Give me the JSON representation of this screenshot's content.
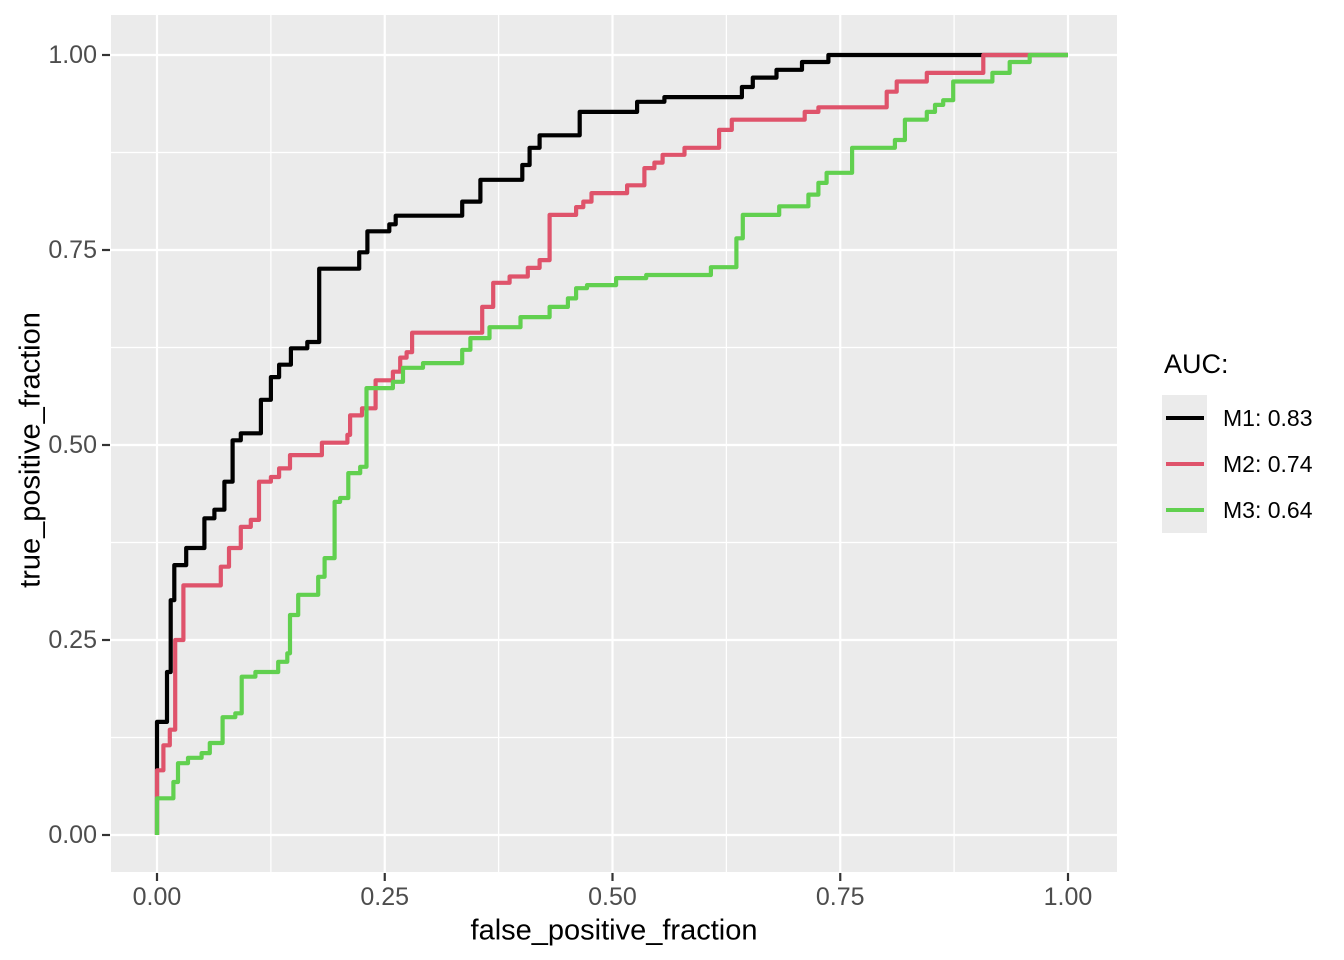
{
  "chart_data": {
    "type": "line",
    "subtype": "roc-step-curves",
    "title": "",
    "xlabel": "false_positive_fraction",
    "ylabel": "true_positive_fraction",
    "xlim": [
      0,
      1
    ],
    "ylim": [
      0,
      1
    ],
    "x_ticks": [
      0,
      0.25,
      0.5,
      0.75,
      1
    ],
    "x_tick_labels": [
      "0.00",
      "0.25",
      "0.50",
      "0.75",
      "1.00"
    ],
    "x_minor_ticks": [
      0.125,
      0.375,
      0.625,
      0.875
    ],
    "y_ticks": [
      0,
      0.25,
      0.5,
      0.75,
      1
    ],
    "y_tick_labels": [
      "0.00",
      "0.25",
      "0.50",
      "0.75",
      "1.00"
    ],
    "y_minor_ticks": [
      0.125,
      0.375,
      0.625,
      0.875
    ],
    "grid": "major and minor white gridlines on gray panel",
    "style": {
      "panel_bg": "#EBEBEB",
      "grid_color": "#FFFFFF",
      "tick_color": "#333333",
      "axis_text_color": "#4D4D4D",
      "legend_key_bg": "#EBEBEB"
    },
    "legend": {
      "title": "AUC:",
      "position": "right",
      "entries": [
        {
          "label": "M1: 0.83",
          "color": "#000000"
        },
        {
          "label": "M2: 0.74",
          "color": "#DF536B"
        },
        {
          "label": "M3: 0.64",
          "color": "#61D04F"
        }
      ]
    },
    "series": [
      {
        "name": "M1",
        "auc": 0.83,
        "color": "#000000",
        "step_points": [
          [
            0,
            0
          ],
          [
            0,
            0.145
          ],
          [
            0.011,
            0.209
          ],
          [
            0.015,
            0.301
          ],
          [
            0.019,
            0.346
          ],
          [
            0.032,
            0.368
          ],
          [
            0.052,
            0.406
          ],
          [
            0.063,
            0.417
          ],
          [
            0.074,
            0.453
          ],
          [
            0.083,
            0.506
          ],
          [
            0.092,
            0.515
          ],
          [
            0.114,
            0.558
          ],
          [
            0.125,
            0.587
          ],
          [
            0.134,
            0.603
          ],
          [
            0.147,
            0.624
          ],
          [
            0.165,
            0.632
          ],
          [
            0.178,
            0.726
          ],
          [
            0.222,
            0.747
          ],
          [
            0.231,
            0.774
          ],
          [
            0.255,
            0.783
          ],
          [
            0.262,
            0.794
          ],
          [
            0.335,
            0.812
          ],
          [
            0.355,
            0.84
          ],
          [
            0.401,
            0.859
          ],
          [
            0.409,
            0.881
          ],
          [
            0.42,
            0.897
          ],
          [
            0.464,
            0.927
          ],
          [
            0.527,
            0.94
          ],
          [
            0.557,
            0.946
          ],
          [
            0.642,
            0.959
          ],
          [
            0.654,
            0.971
          ],
          [
            0.68,
            0.981
          ],
          [
            0.708,
            0.991
          ],
          [
            0.737,
            1
          ],
          [
            1,
            1
          ]
        ]
      },
      {
        "name": "M2",
        "auc": 0.74,
        "color": "#DF536B",
        "step_points": [
          [
            0,
            0
          ],
          [
            0,
            0.083
          ],
          [
            0.007,
            0.115
          ],
          [
            0.014,
            0.135
          ],
          [
            0.02,
            0.25
          ],
          [
            0.029,
            0.32
          ],
          [
            0.07,
            0.344
          ],
          [
            0.079,
            0.368
          ],
          [
            0.092,
            0.395
          ],
          [
            0.103,
            0.404
          ],
          [
            0.112,
            0.453
          ],
          [
            0.125,
            0.459
          ],
          [
            0.134,
            0.47
          ],
          [
            0.146,
            0.487
          ],
          [
            0.181,
            0.503
          ],
          [
            0.209,
            0.513
          ],
          [
            0.212,
            0.538
          ],
          [
            0.225,
            0.547
          ],
          [
            0.24,
            0.583
          ],
          [
            0.259,
            0.594
          ],
          [
            0.267,
            0.612
          ],
          [
            0.274,
            0.619
          ],
          [
            0.28,
            0.644
          ],
          [
            0.357,
            0.677
          ],
          [
            0.369,
            0.708
          ],
          [
            0.387,
            0.716
          ],
          [
            0.407,
            0.727
          ],
          [
            0.42,
            0.737
          ],
          [
            0.431,
            0.795
          ],
          [
            0.46,
            0.805
          ],
          [
            0.468,
            0.812
          ],
          [
            0.477,
            0.823
          ],
          [
            0.516,
            0.833
          ],
          [
            0.535,
            0.855
          ],
          [
            0.546,
            0.862
          ],
          [
            0.555,
            0.872
          ],
          [
            0.579,
            0.881
          ],
          [
            0.617,
            0.904
          ],
          [
            0.631,
            0.917
          ],
          [
            0.711,
            0.927
          ],
          [
            0.726,
            0.933
          ],
          [
            0.801,
            0.953
          ],
          [
            0.812,
            0.966
          ],
          [
            0.845,
            0.977
          ],
          [
            0.907,
            1
          ],
          [
            1,
            1
          ]
        ]
      },
      {
        "name": "M3",
        "auc": 0.64,
        "color": "#61D04F",
        "step_points": [
          [
            0,
            0
          ],
          [
            0,
            0.047
          ],
          [
            0.018,
            0.068
          ],
          [
            0.023,
            0.092
          ],
          [
            0.034,
            0.099
          ],
          [
            0.049,
            0.105
          ],
          [
            0.058,
            0.118
          ],
          [
            0.072,
            0.151
          ],
          [
            0.086,
            0.156
          ],
          [
            0.093,
            0.203
          ],
          [
            0.108,
            0.209
          ],
          [
            0.133,
            0.222
          ],
          [
            0.143,
            0.233
          ],
          [
            0.146,
            0.282
          ],
          [
            0.155,
            0.308
          ],
          [
            0.177,
            0.331
          ],
          [
            0.184,
            0.355
          ],
          [
            0.195,
            0.427
          ],
          [
            0.201,
            0.432
          ],
          [
            0.21,
            0.464
          ],
          [
            0.223,
            0.472
          ],
          [
            0.23,
            0.573
          ],
          [
            0.259,
            0.581
          ],
          [
            0.27,
            0.599
          ],
          [
            0.292,
            0.605
          ],
          [
            0.335,
            0.622
          ],
          [
            0.344,
            0.637
          ],
          [
            0.365,
            0.651
          ],
          [
            0.399,
            0.664
          ],
          [
            0.431,
            0.677
          ],
          [
            0.451,
            0.688
          ],
          [
            0.46,
            0.701
          ],
          [
            0.472,
            0.705
          ],
          [
            0.504,
            0.714
          ],
          [
            0.537,
            0.718
          ],
          [
            0.608,
            0.728
          ],
          [
            0.636,
            0.765
          ],
          [
            0.643,
            0.795
          ],
          [
            0.683,
            0.806
          ],
          [
            0.715,
            0.821
          ],
          [
            0.726,
            0.836
          ],
          [
            0.735,
            0.849
          ],
          [
            0.763,
            0.881
          ],
          [
            0.81,
            0.891
          ],
          [
            0.821,
            0.917
          ],
          [
            0.845,
            0.927
          ],
          [
            0.854,
            0.936
          ],
          [
            0.863,
            0.942
          ],
          [
            0.874,
            0.966
          ],
          [
            0.917,
            0.977
          ],
          [
            0.936,
            0.991
          ],
          [
            0.958,
            1
          ],
          [
            1,
            1
          ]
        ]
      }
    ]
  }
}
